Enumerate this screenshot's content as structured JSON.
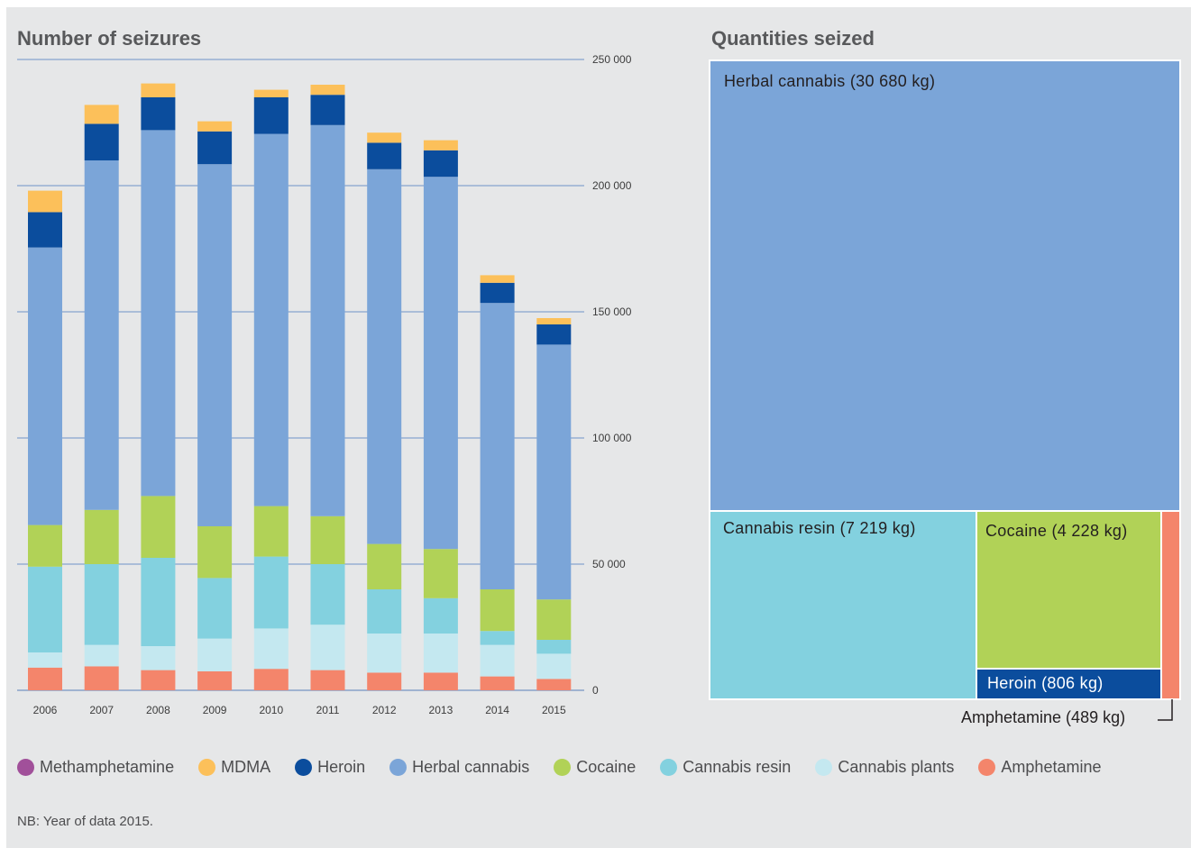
{
  "titles": {
    "bar": "Number of seizures",
    "treemap": "Quantities seized"
  },
  "colors": {
    "Methamphetamine": "#a1509a",
    "MDMA": "#fcc05a",
    "Heroin": "#0b4d9d",
    "Herbal cannabis": "#7ba5d8",
    "Cocaine": "#b1d257",
    "Cannabis resin": "#83d1df",
    "Cannabis plants": "#c4e8f0",
    "Amphetamine": "#f4856b"
  },
  "legend": [
    {
      "name": "Methamphetamine",
      "color": "#a1509a"
    },
    {
      "name": "MDMA",
      "color": "#fcc05a"
    },
    {
      "name": "Heroin",
      "color": "#0b4d9d"
    },
    {
      "name": "Herbal cannabis",
      "color": "#7ba5d8"
    },
    {
      "name": "Cocaine",
      "color": "#b1d257"
    },
    {
      "name": "Cannabis resin",
      "color": "#83d1df"
    },
    {
      "name": "Cannabis plants",
      "color": "#c4e8f0"
    },
    {
      "name": "Amphetamine",
      "color": "#f4856b"
    }
  ],
  "note": "NB: Year of data 2015.",
  "chart_data": [
    {
      "type": "bar",
      "stacked": true,
      "title": "Number of seizures",
      "categories": [
        "2006",
        "2007",
        "2008",
        "2009",
        "2010",
        "2011",
        "2012",
        "2013",
        "2014",
        "2015"
      ],
      "y_ticks": [
        "0",
        "50 000",
        "100 000",
        "150 000",
        "200 000",
        "250 000"
      ],
      "ylim": [
        0,
        250000
      ],
      "grid": true,
      "series": [
        {
          "name": "Amphetamine",
          "values": [
            9000,
            9500,
            8000,
            7500,
            8500,
            8000,
            7000,
            7000,
            5500,
            4500
          ]
        },
        {
          "name": "Cannabis plants",
          "values": [
            6000,
            8500,
            9500,
            13000,
            16000,
            18000,
            15500,
            15500,
            12500,
            10000
          ]
        },
        {
          "name": "Cannabis resin",
          "values": [
            34000,
            32000,
            35000,
            24000,
            28500,
            24000,
            17500,
            14000,
            5500,
            5500
          ]
        },
        {
          "name": "Cocaine",
          "values": [
            16500,
            21500,
            24500,
            20500,
            20000,
            19000,
            18000,
            19500,
            16500,
            16000
          ]
        },
        {
          "name": "Herbal cannabis",
          "values": [
            110000,
            138500,
            145000,
            143500,
            147500,
            155000,
            148500,
            147500,
            113500,
            101000
          ]
        },
        {
          "name": "Heroin",
          "values": [
            14000,
            14500,
            13000,
            13000,
            14500,
            12000,
            10500,
            10500,
            8000,
            8000
          ]
        },
        {
          "name": "MDMA",
          "values": [
            8500,
            7500,
            5500,
            4000,
            3000,
            4000,
            4000,
            4000,
            3000,
            2500
          ]
        },
        {
          "name": "Methamphetamine",
          "values": [
            0,
            0,
            0,
            0,
            0,
            0,
            0,
            0,
            0,
            0
          ]
        }
      ]
    },
    {
      "type": "treemap",
      "title": "Quantities seized",
      "items": [
        {
          "name": "Herbal cannabis",
          "value": 30680,
          "unit": "kg",
          "label": "Herbal cannabis (30 680 kg)"
        },
        {
          "name": "Cannabis resin",
          "value": 7219,
          "unit": "kg",
          "label": "Cannabis resin (7 219 kg)"
        },
        {
          "name": "Cocaine",
          "value": 4228,
          "unit": "kg",
          "label": "Cocaine (4 228 kg)"
        },
        {
          "name": "Heroin",
          "value": 806,
          "unit": "kg",
          "label": "Heroin (806 kg)"
        },
        {
          "name": "Amphetamine",
          "value": 489,
          "unit": "kg",
          "label": "Amphetamine (489 kg)"
        }
      ]
    }
  ]
}
